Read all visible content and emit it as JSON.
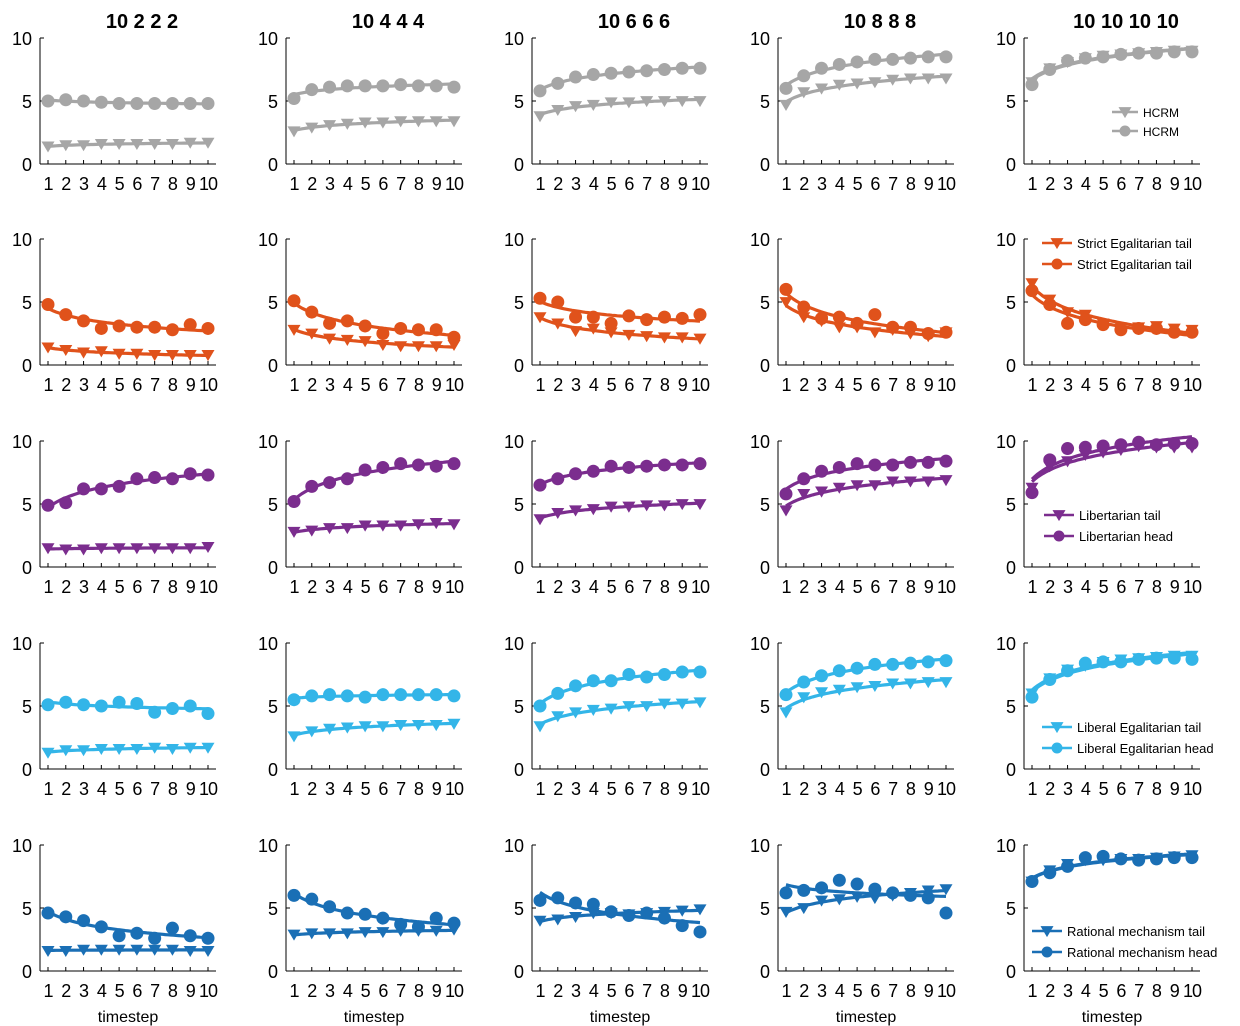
{
  "column_titles": [
    "10 2 2 2",
    "10 4 4 4",
    "10 6 6 6",
    "10 8 8 8",
    "10 10 10 10"
  ],
  "xlabel": "timestep",
  "chart_data": {
    "type": "line",
    "x": [
      1,
      2,
      3,
      4,
      5,
      6,
      7,
      8,
      9,
      10
    ],
    "ylim": [
      0,
      10
    ],
    "yticks": [
      0,
      5,
      10
    ],
    "xtick_labels": [
      "1",
      "2",
      "3",
      "4",
      "5",
      "6",
      "7",
      "8",
      "9",
      "10"
    ],
    "grid": false,
    "rows": [
      {
        "color": "#a6a6a6",
        "legend": [
          "HCRM",
          "HCRM"
        ],
        "panels": [
          {
            "tail": [
              1.4,
              1.5,
              1.5,
              1.6,
              1.6,
              1.6,
              1.6,
              1.6,
              1.7,
              1.7
            ],
            "head": [
              5.0,
              5.1,
              5.0,
              4.9,
              4.8,
              4.8,
              4.8,
              4.8,
              4.8,
              4.8
            ]
          },
          {
            "tail": [
              2.6,
              2.9,
              3.1,
              3.2,
              3.3,
              3.3,
              3.4,
              3.4,
              3.4,
              3.4
            ],
            "head": [
              5.2,
              5.9,
              6.1,
              6.2,
              6.2,
              6.2,
              6.3,
              6.2,
              6.2,
              6.1
            ]
          },
          {
            "tail": [
              3.8,
              4.3,
              4.6,
              4.7,
              4.9,
              4.9,
              5.0,
              5.0,
              5.0,
              5.0
            ],
            "head": [
              5.8,
              6.4,
              6.9,
              7.1,
              7.2,
              7.3,
              7.4,
              7.5,
              7.6,
              7.6
            ]
          },
          {
            "tail": [
              4.7,
              5.7,
              6.0,
              6.3,
              6.4,
              6.5,
              6.7,
              6.8,
              6.8,
              6.8
            ],
            "head": [
              6.0,
              7.0,
              7.6,
              7.9,
              8.1,
              8.3,
              8.3,
              8.4,
              8.5,
              8.5
            ]
          },
          {
            "tail": [
              6.5,
              7.6,
              8.1,
              8.4,
              8.6,
              8.7,
              8.8,
              8.9,
              9.0,
              9.0
            ],
            "head": [
              6.3,
              7.5,
              8.2,
              8.4,
              8.5,
              8.7,
              8.8,
              8.8,
              8.9,
              8.9
            ]
          }
        ]
      },
      {
        "color": "#e0521b",
        "legend": [
          "Strict Egalitarian tail",
          "Strict Egalitarian tail"
        ],
        "panels": [
          {
            "tail": [
              1.4,
              1.2,
              1.0,
              1.1,
              0.9,
              0.9,
              0.8,
              0.8,
              0.8,
              0.8
            ],
            "head": [
              4.8,
              4.0,
              3.5,
              2.9,
              3.1,
              3.0,
              3.0,
              2.8,
              3.2,
              2.9
            ]
          },
          {
            "tail": [
              2.8,
              2.5,
              2.1,
              2.0,
              1.9,
              1.6,
              1.5,
              1.5,
              1.5,
              1.6
            ],
            "head": [
              5.1,
              4.2,
              3.3,
              3.5,
              3.1,
              2.5,
              2.9,
              2.8,
              2.8,
              2.2
            ]
          },
          {
            "tail": [
              3.8,
              3.3,
              2.7,
              2.9,
              2.6,
              2.4,
              2.3,
              2.2,
              2.2,
              2.1
            ],
            "head": [
              5.3,
              5.0,
              3.8,
              3.8,
              3.3,
              3.9,
              3.6,
              3.8,
              3.7,
              4.0
            ]
          },
          {
            "tail": [
              5.0,
              3.8,
              3.5,
              3.0,
              3.0,
              2.6,
              2.8,
              2.5,
              2.3,
              2.6
            ],
            "head": [
              6.0,
              4.6,
              3.7,
              3.8,
              3.3,
              4.0,
              3.0,
              3.0,
              2.5,
              2.6
            ]
          },
          {
            "tail": [
              6.5,
              5.2,
              4.2,
              4.0,
              3.3,
              3.0,
              3.0,
              3.1,
              2.9,
              2.8
            ],
            "head": [
              5.9,
              4.8,
              3.3,
              3.6,
              3.2,
              2.8,
              2.9,
              2.9,
              2.6,
              2.6
            ]
          }
        ]
      },
      {
        "color": "#7b2d8e",
        "legend": [
          "Libertarian tail",
          "Libertarian head"
        ],
        "panels": [
          {
            "tail": [
              1.5,
              1.4,
              1.4,
              1.5,
              1.5,
              1.5,
              1.5,
              1.5,
              1.5,
              1.6
            ],
            "head": [
              4.9,
              5.1,
              6.2,
              6.2,
              6.4,
              7.0,
              7.1,
              7.0,
              7.4,
              7.3
            ]
          },
          {
            "tail": [
              2.8,
              2.9,
              3.1,
              3.1,
              3.3,
              3.3,
              3.3,
              3.4,
              3.5,
              3.4
            ],
            "head": [
              5.2,
              6.4,
              6.7,
              7.0,
              7.7,
              7.9,
              8.2,
              8.1,
              8.0,
              8.2
            ]
          },
          {
            "tail": [
              3.8,
              4.3,
              4.5,
              4.6,
              4.8,
              4.8,
              4.9,
              4.9,
              5.0,
              5.0
            ],
            "head": [
              6.5,
              7.0,
              7.4,
              7.6,
              8.0,
              7.9,
              8.0,
              8.1,
              8.1,
              8.2
            ]
          },
          {
            "tail": [
              4.5,
              5.8,
              6.0,
              6.3,
              6.5,
              6.5,
              6.8,
              6.8,
              6.8,
              6.9
            ],
            "head": [
              5.8,
              7.0,
              7.6,
              7.9,
              8.2,
              8.1,
              8.1,
              8.3,
              8.3,
              8.4
            ]
          },
          {
            "tail": [
              6.3,
              8.0,
              8.4,
              8.9,
              9.1,
              9.3,
              9.6,
              9.5,
              9.5,
              9.5
            ],
            "head": [
              5.9,
              8.5,
              9.4,
              9.5,
              9.6,
              9.7,
              9.9,
              9.7,
              9.8,
              9.8
            ]
          }
        ]
      },
      {
        "color": "#33b5e8",
        "legend": [
          "Liberal Egalitarian tail",
          "Liberal Egalitarian head"
        ],
        "panels": [
          {
            "tail": [
              1.3,
              1.5,
              1.5,
              1.6,
              1.6,
              1.6,
              1.7,
              1.6,
              1.7,
              1.7
            ],
            "head": [
              5.1,
              5.3,
              5.1,
              5.0,
              5.3,
              5.2,
              4.5,
              4.8,
              5.0,
              4.4
            ]
          },
          {
            "tail": [
              2.6,
              3.0,
              3.2,
              3.3,
              3.4,
              3.4,
              3.5,
              3.5,
              3.5,
              3.6
            ],
            "head": [
              5.5,
              5.8,
              5.9,
              5.8,
              5.7,
              5.9,
              5.9,
              5.9,
              5.9,
              5.8
            ]
          },
          {
            "tail": [
              3.4,
              4.2,
              4.5,
              4.7,
              4.8,
              5.0,
              5.0,
              5.2,
              5.2,
              5.3
            ],
            "head": [
              5.0,
              6.0,
              6.6,
              7.0,
              7.0,
              7.5,
              7.3,
              7.5,
              7.7,
              7.7
            ]
          },
          {
            "tail": [
              4.5,
              5.7,
              6.1,
              6.3,
              6.5,
              6.6,
              6.8,
              6.8,
              6.9,
              6.9
            ],
            "head": [
              5.9,
              6.9,
              7.4,
              7.8,
              8.0,
              8.3,
              8.3,
              8.4,
              8.5,
              8.6
            ]
          },
          {
            "tail": [
              6.0,
              7.2,
              7.9,
              8.2,
              8.5,
              8.7,
              8.8,
              8.9,
              9.0,
              9.0
            ],
            "head": [
              5.7,
              7.1,
              7.8,
              8.4,
              8.5,
              8.5,
              8.7,
              8.8,
              8.8,
              8.7
            ]
          }
        ]
      },
      {
        "color": "#1a6fb5",
        "legend": [
          "Rational mechanism tail",
          "Rational mechanism head"
        ],
        "panels": [
          {
            "tail": [
              1.6,
              1.6,
              1.7,
              1.7,
              1.7,
              1.7,
              1.7,
              1.7,
              1.6,
              1.6
            ],
            "head": [
              4.6,
              4.3,
              4.0,
              3.5,
              2.8,
              3.0,
              2.6,
              3.4,
              2.8,
              2.6
            ]
          },
          {
            "tail": [
              2.9,
              3.0,
              3.0,
              3.0,
              3.1,
              3.1,
              3.2,
              3.2,
              3.2,
              3.3
            ],
            "head": [
              6.0,
              5.7,
              5.1,
              4.6,
              4.5,
              4.2,
              3.7,
              3.5,
              4.2,
              3.8
            ]
          },
          {
            "tail": [
              4.0,
              4.1,
              4.3,
              4.6,
              4.6,
              4.5,
              4.6,
              4.7,
              4.8,
              4.9
            ],
            "head": [
              5.6,
              5.8,
              5.4,
              5.3,
              4.7,
              4.4,
              4.6,
              4.2,
              3.6,
              3.1
            ]
          },
          {
            "tail": [
              4.7,
              5.0,
              5.6,
              5.7,
              5.9,
              5.8,
              6.0,
              6.2,
              6.4,
              6.5
            ],
            "head": [
              6.2,
              6.4,
              6.6,
              7.2,
              6.9,
              6.5,
              6.2,
              6.0,
              5.8,
              4.6
            ]
          },
          {
            "tail": [
              7.1,
              8.0,
              8.5,
              8.8,
              8.8,
              8.9,
              8.9,
              9.0,
              9.1,
              9.2
            ],
            "head": [
              7.1,
              7.8,
              8.3,
              9.0,
              9.1,
              8.9,
              8.8,
              8.9,
              9.0,
              9.0
            ]
          }
        ]
      }
    ]
  }
}
